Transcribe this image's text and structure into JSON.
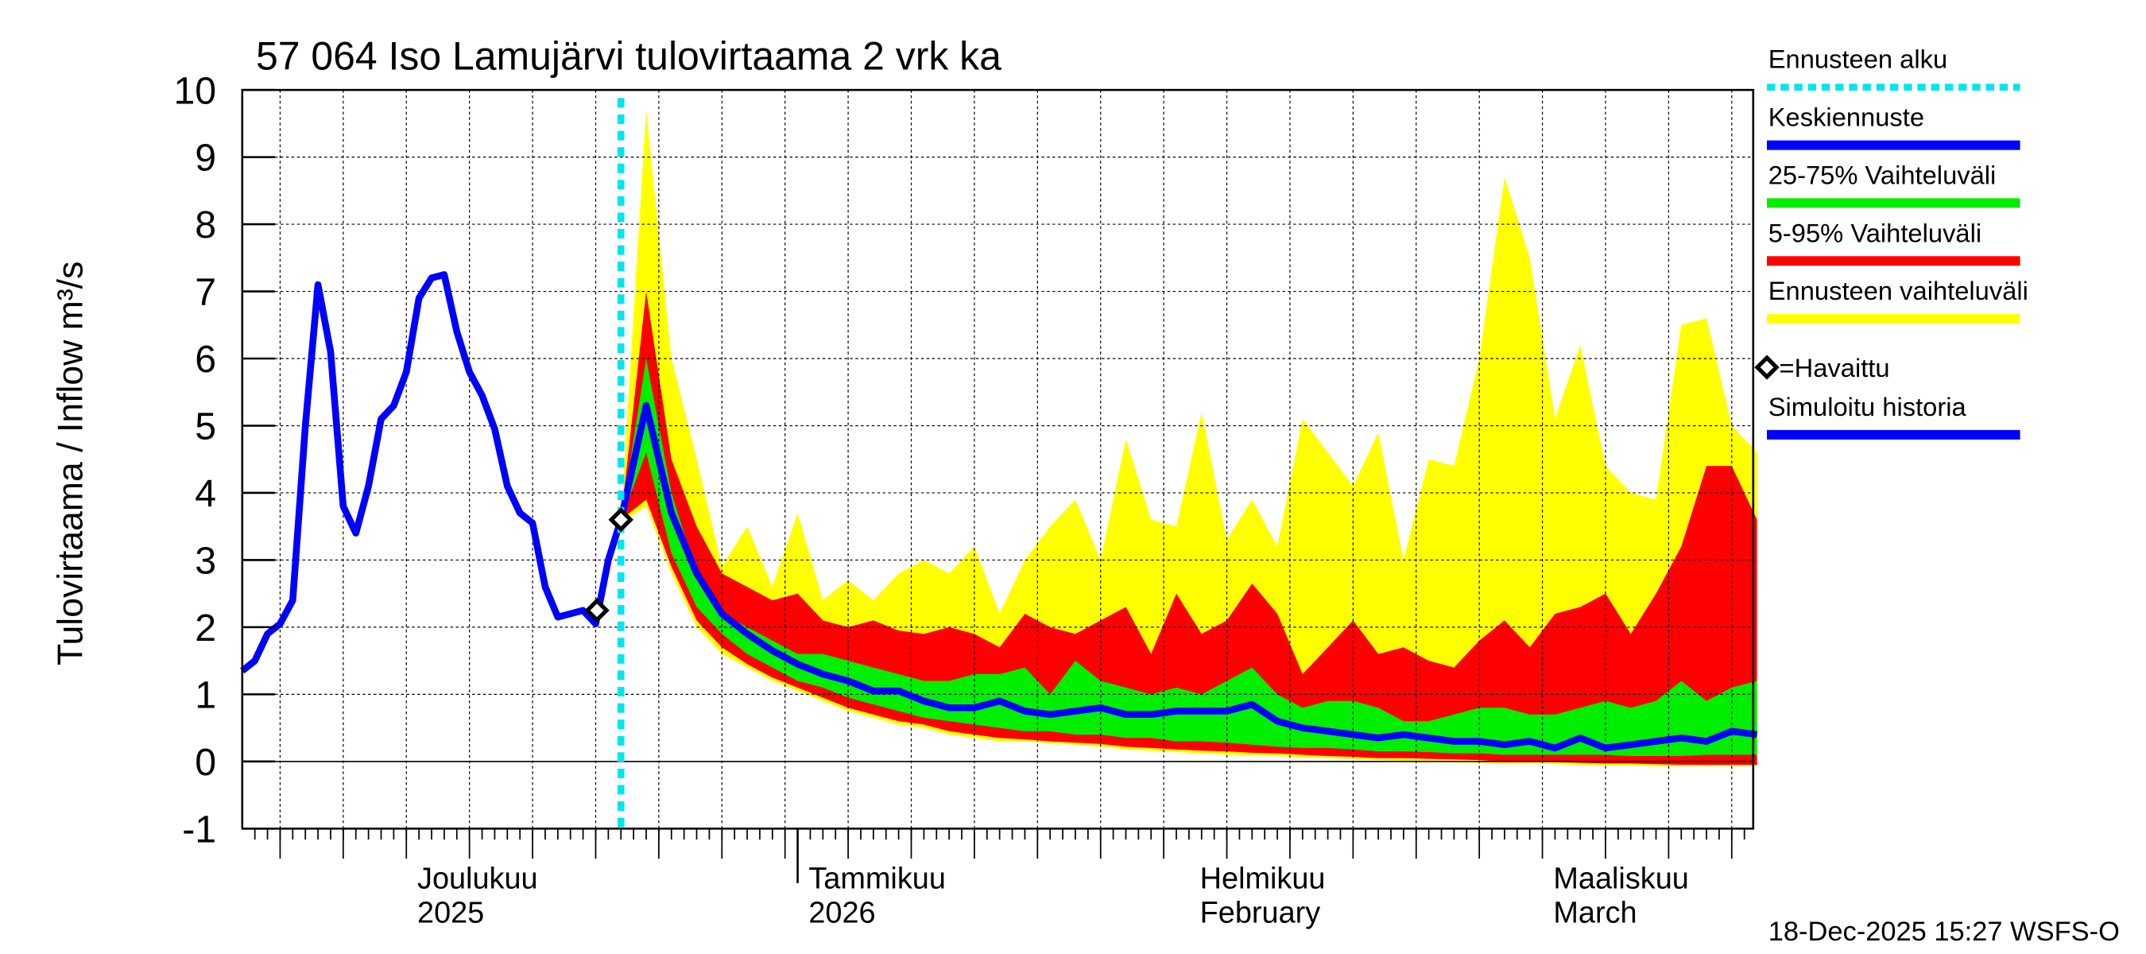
{
  "chart_data": {
    "type": "area",
    "title": "57 064 Iso Lamujärvi tulovirtaama 2 vrk ka",
    "ylabel": "Tulovirtaama / Inflow    m³/s",
    "ylim": [
      -1,
      10
    ],
    "yticks": [
      "-1",
      "0",
      "1",
      "2",
      "3",
      "4",
      "5",
      "6",
      "7",
      "8",
      "9",
      "10"
    ],
    "x_range": [
      "2025-11-18",
      "2026-03-18"
    ],
    "forecast_start": "2025-12-18",
    "month_labels": [
      {
        "line1": "Joulukuu",
        "line2": "2025",
        "day": 13
      },
      {
        "line1": "Tammikuu",
        "line2": "2026",
        "day": 44
      },
      {
        "line1": "Helmikuu",
        "line2": "February",
        "day": 75
      },
      {
        "line1": "Maaliskuu",
        "line2": "March",
        "day": 103
      }
    ],
    "history": {
      "name": "Simuloitu historia",
      "x_start": "2025-11-18",
      "x_step_days": 1,
      "values": [
        1.35,
        1.5,
        1.9,
        2.05,
        2.4,
        5.0,
        7.1,
        6.1,
        3.8,
        3.4,
        4.1,
        5.1,
        5.3,
        5.8,
        6.9,
        7.2,
        7.25,
        6.4,
        5.8,
        5.45,
        4.95,
        4.1,
        3.7,
        3.55,
        2.6,
        2.15,
        2.2,
        2.25,
        2.05,
        3.0,
        3.6
      ]
    },
    "forecast": {
      "x_start": "2025-12-18",
      "x_step_days": 2,
      "mean": [
        3.6,
        5.3,
        3.7,
        2.8,
        2.2,
        1.9,
        1.65,
        1.45,
        1.3,
        1.2,
        1.05,
        1.05,
        0.9,
        0.8,
        0.8,
        0.9,
        0.75,
        0.7,
        0.75,
        0.8,
        0.7,
        0.7,
        0.75,
        0.75,
        0.75,
        0.85,
        0.6,
        0.5,
        0.45,
        0.4,
        0.35,
        0.4,
        0.35,
        0.3,
        0.3,
        0.25,
        0.3,
        0.2,
        0.35,
        0.2,
        0.25,
        0.3,
        0.35,
        0.3,
        0.45,
        0.4
      ],
      "max": [
        3.6,
        9.7,
        6.0,
        4.5,
        2.9,
        3.5,
        2.6,
        3.7,
        2.4,
        2.7,
        2.4,
        2.8,
        3.0,
        2.8,
        3.2,
        2.2,
        3.0,
        3.5,
        3.9,
        3.0,
        4.8,
        3.6,
        3.5,
        5.2,
        3.3,
        3.9,
        3.2,
        5.1,
        4.6,
        4.1,
        4.9,
        3.0,
        4.5,
        4.4,
        6.0,
        8.7,
        7.5,
        5.1,
        6.2,
        4.4,
        4.0,
        3.9,
        6.5,
        6.6,
        5.0,
        4.6
      ],
      "p95": [
        3.6,
        7.0,
        4.5,
        3.5,
        2.8,
        2.6,
        2.4,
        2.5,
        2.1,
        2.0,
        2.1,
        1.95,
        1.9,
        2.0,
        1.9,
        1.7,
        2.2,
        2.0,
        1.9,
        2.1,
        2.3,
        1.6,
        2.5,
        1.9,
        2.1,
        2.65,
        2.2,
        1.3,
        1.7,
        2.1,
        1.6,
        1.7,
        1.5,
        1.4,
        1.8,
        2.1,
        1.7,
        2.2,
        2.3,
        2.5,
        1.9,
        2.5,
        3.2,
        4.4,
        4.4,
        3.6
      ],
      "p75": [
        3.6,
        6.0,
        4.0,
        2.8,
        2.2,
        2.0,
        1.8,
        1.6,
        1.6,
        1.5,
        1.4,
        1.3,
        1.2,
        1.2,
        1.3,
        1.3,
        1.4,
        1.0,
        1.5,
        1.2,
        1.1,
        1.0,
        1.1,
        1.0,
        1.2,
        1.4,
        1.0,
        0.8,
        0.9,
        0.9,
        0.8,
        0.6,
        0.6,
        0.7,
        0.8,
        0.8,
        0.7,
        0.7,
        0.8,
        0.9,
        0.8,
        0.9,
        1.2,
        0.9,
        1.1,
        1.2
      ],
      "p25": [
        3.6,
        4.6,
        3.1,
        2.3,
        1.9,
        1.6,
        1.4,
        1.2,
        1.1,
        0.95,
        0.85,
        0.75,
        0.65,
        0.6,
        0.55,
        0.5,
        0.45,
        0.45,
        0.4,
        0.4,
        0.35,
        0.35,
        0.3,
        0.3,
        0.28,
        0.25,
        0.22,
        0.2,
        0.2,
        0.18,
        0.15,
        0.15,
        0.14,
        0.12,
        0.12,
        0.1,
        0.1,
        0.1,
        0.1,
        0.1,
        0.08,
        0.08,
        0.08,
        0.1,
        0.1,
        0.1
      ],
      "p05": [
        3.6,
        3.9,
        2.9,
        2.1,
        1.7,
        1.45,
        1.25,
        1.1,
        0.95,
        0.8,
        0.7,
        0.6,
        0.55,
        0.45,
        0.4,
        0.35,
        0.33,
        0.3,
        0.28,
        0.26,
        0.22,
        0.2,
        0.18,
        0.16,
        0.15,
        0.13,
        0.12,
        0.1,
        0.08,
        0.07,
        0.05,
        0.05,
        0.04,
        0.03,
        0.02,
        0.0,
        0.0,
        -0.01,
        -0.02,
        -0.03,
        -0.03,
        -0.04,
        -0.05,
        -0.05,
        -0.05,
        -0.05
      ],
      "min": [
        3.55,
        3.8,
        2.8,
        2.0,
        1.6,
        1.4,
        1.2,
        1.05,
        0.9,
        0.75,
        0.65,
        0.55,
        0.5,
        0.4,
        0.35,
        0.3,
        0.3,
        0.27,
        0.25,
        0.22,
        0.18,
        0.16,
        0.14,
        0.12,
        0.1,
        0.09,
        0.08,
        0.06,
        0.05,
        0.04,
        0.02,
        0.01,
        0.0,
        -0.01,
        -0.02,
        -0.03,
        -0.03,
        -0.04,
        -0.05,
        -0.06,
        -0.06,
        -0.07,
        -0.07,
        -0.07,
        -0.07,
        -0.07
      ]
    },
    "observed": [
      {
        "date": "2025-12-17",
        "value": 2.25
      },
      {
        "date": "2025-12-18",
        "value": 3.6
      }
    ],
    "legend": [
      {
        "label": "Ennusteen alku",
        "color": "#00e5ee",
        "style": "dotted"
      },
      {
        "label": "Keskiennuste",
        "color": "#0000ff",
        "style": "line"
      },
      {
        "label": "25-75% Vaihteluväli",
        "color": "#00ee00",
        "style": "band"
      },
      {
        "label": "5-95% Vaihteluväli",
        "color": "#ff0000",
        "style": "band"
      },
      {
        "label": "Ennusteen vaihteluväli",
        "color": "#ffff00",
        "style": "band"
      },
      {
        "label": "=Havaittu",
        "color": "#000000",
        "style": "diamond"
      },
      {
        "label": "Simuloitu historia",
        "color": "#0000ff",
        "style": "line"
      }
    ],
    "legend_position": "right",
    "grid": true,
    "footer": "18-Dec-2025 15:27 WSFS-O"
  }
}
